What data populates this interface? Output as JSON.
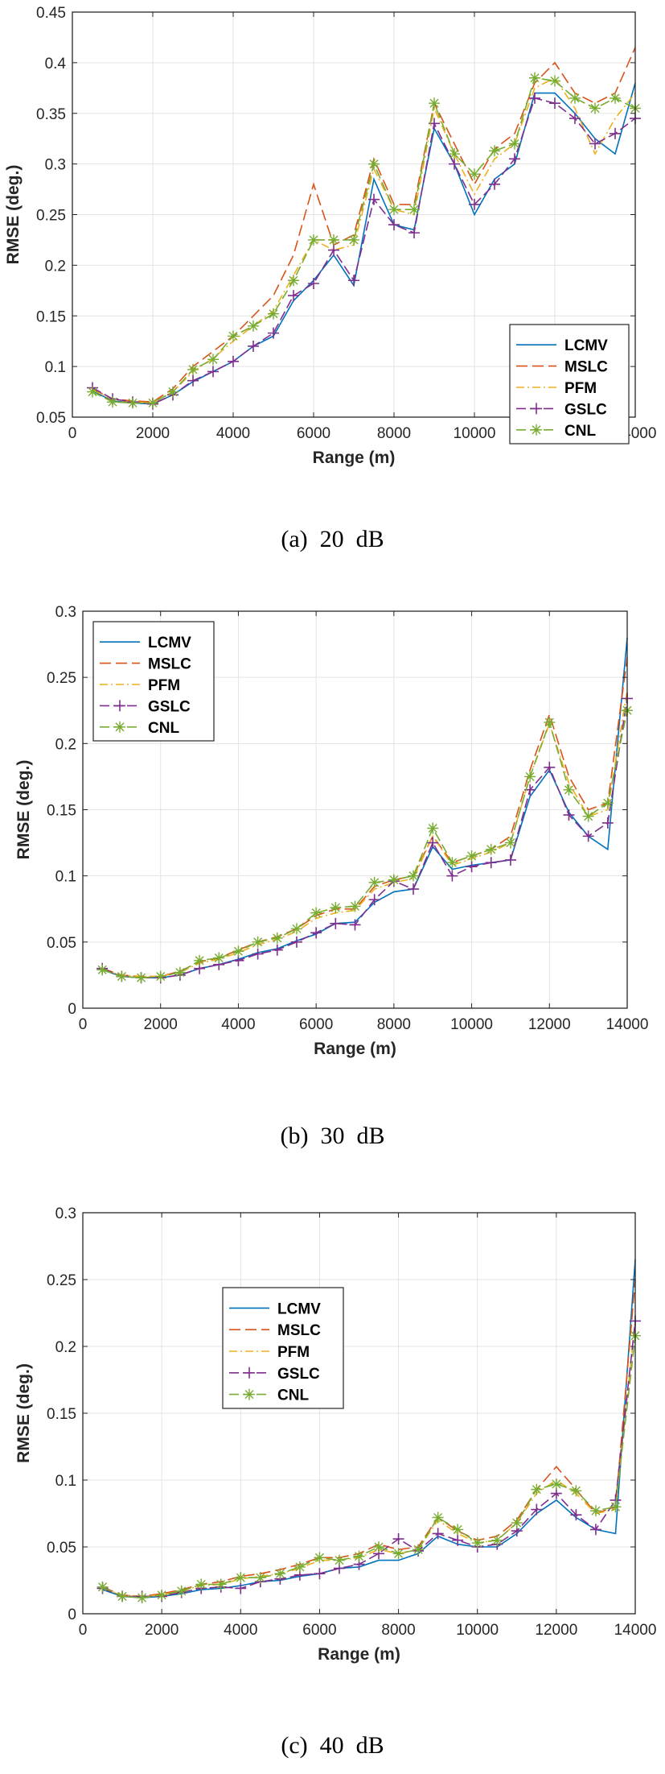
{
  "chart_data": [
    {
      "type": "line",
      "caption": "(a)  20  dB",
      "xlabel": "Range (m)",
      "ylabel": "RMSE (deg.)",
      "xlim": [
        0,
        14000
      ],
      "ylim": [
        0.05,
        0.45
      ],
      "xticks": [
        0,
        2000,
        4000,
        6000,
        8000,
        10000,
        12000,
        14000
      ],
      "yticks": [
        0.05,
        0.1,
        0.15,
        0.2,
        0.25,
        0.3,
        0.35,
        0.4,
        0.45
      ],
      "ytick_labels": [
        "0.05",
        "0.1",
        "0.15",
        "0.2",
        "0.25",
        "0.3",
        "0.35",
        "0.4",
        "0.45"
      ],
      "grid": true,
      "legend_position": "bottom-right",
      "x": [
        500,
        1000,
        1500,
        2000,
        2500,
        3000,
        3500,
        4000,
        4500,
        5000,
        5500,
        6000,
        6500,
        7000,
        7500,
        8000,
        8500,
        9000,
        9500,
        10000,
        10500,
        11000,
        11500,
        12000,
        12500,
        13000,
        13500,
        14000
      ],
      "series": [
        {
          "name": "LCMV",
          "values": [
            0.076,
            0.066,
            0.064,
            0.063,
            0.072,
            0.085,
            0.095,
            0.105,
            0.12,
            0.13,
            0.165,
            0.185,
            0.21,
            0.18,
            0.285,
            0.24,
            0.235,
            0.335,
            0.3,
            0.25,
            0.285,
            0.3,
            0.37,
            0.37,
            0.35,
            0.325,
            0.31,
            0.38
          ]
        },
        {
          "name": "MSLC",
          "values": [
            0.078,
            0.068,
            0.066,
            0.065,
            0.078,
            0.1,
            0.115,
            0.13,
            0.15,
            0.17,
            0.21,
            0.28,
            0.22,
            0.23,
            0.305,
            0.26,
            0.26,
            0.36,
            0.32,
            0.28,
            0.315,
            0.33,
            0.38,
            0.4,
            0.37,
            0.36,
            0.37,
            0.415
          ]
        },
        {
          "name": "PFM",
          "values": [
            0.077,
            0.067,
            0.065,
            0.064,
            0.075,
            0.095,
            0.108,
            0.125,
            0.14,
            0.155,
            0.19,
            0.225,
            0.215,
            0.22,
            0.295,
            0.255,
            0.25,
            0.355,
            0.31,
            0.27,
            0.305,
            0.32,
            0.375,
            0.385,
            0.355,
            0.31,
            0.345,
            0.37
          ]
        },
        {
          "name": "GSLC",
          "values": [
            0.079,
            0.068,
            0.065,
            0.063,
            0.072,
            0.086,
            0.095,
            0.105,
            0.12,
            0.133,
            0.17,
            0.182,
            0.215,
            0.185,
            0.265,
            0.24,
            0.232,
            0.34,
            0.3,
            0.26,
            0.28,
            0.305,
            0.365,
            0.36,
            0.345,
            0.32,
            0.33,
            0.345
          ]
        },
        {
          "name": "CNL",
          "values": [
            0.075,
            0.065,
            0.064,
            0.064,
            0.075,
            0.097,
            0.107,
            0.13,
            0.14,
            0.152,
            0.185,
            0.225,
            0.225,
            0.225,
            0.3,
            0.255,
            0.255,
            0.36,
            0.31,
            0.29,
            0.313,
            0.32,
            0.385,
            0.382,
            0.365,
            0.355,
            0.365,
            0.355
          ]
        }
      ]
    },
    {
      "type": "line",
      "caption": "(b)  30  dB",
      "xlabel": "Range (m)",
      "ylabel": "RMSE (deg.)",
      "xlim": [
        0,
        14000
      ],
      "ylim": [
        0,
        0.3
      ],
      "xticks": [
        0,
        2000,
        4000,
        6000,
        8000,
        10000,
        12000,
        14000
      ],
      "yticks": [
        0,
        0.05,
        0.1,
        0.15,
        0.2,
        0.25,
        0.3
      ],
      "ytick_labels": [
        "0",
        "0.05",
        "0.1",
        "0.15",
        "0.2",
        "0.25",
        "0.3"
      ],
      "grid": true,
      "legend_position": "top-left",
      "x": [
        500,
        1000,
        1500,
        2000,
        2500,
        3000,
        3500,
        4000,
        4500,
        5000,
        5500,
        6000,
        6500,
        7000,
        7500,
        8000,
        8500,
        9000,
        9500,
        10000,
        10500,
        11000,
        11500,
        12000,
        12500,
        13000,
        13500,
        14000
      ],
      "series": [
        {
          "name": "LCMV",
          "values": [
            0.029,
            0.024,
            0.023,
            0.023,
            0.025,
            0.03,
            0.033,
            0.037,
            0.042,
            0.045,
            0.051,
            0.056,
            0.064,
            0.065,
            0.08,
            0.088,
            0.09,
            0.122,
            0.105,
            0.108,
            0.11,
            0.112,
            0.16,
            0.18,
            0.148,
            0.13,
            0.12,
            0.28
          ]
        },
        {
          "name": "MSLC",
          "values": [
            0.03,
            0.025,
            0.024,
            0.024,
            0.028,
            0.035,
            0.038,
            0.044,
            0.05,
            0.054,
            0.06,
            0.07,
            0.075,
            0.075,
            0.092,
            0.097,
            0.1,
            0.13,
            0.11,
            0.115,
            0.12,
            0.13,
            0.18,
            0.222,
            0.175,
            0.15,
            0.155,
            0.265
          ]
        },
        {
          "name": "PFM",
          "values": [
            0.029,
            0.025,
            0.024,
            0.024,
            0.027,
            0.034,
            0.037,
            0.042,
            0.048,
            0.052,
            0.058,
            0.068,
            0.072,
            0.074,
            0.09,
            0.095,
            0.098,
            0.13,
            0.108,
            0.113,
            0.118,
            0.125,
            0.175,
            0.215,
            0.17,
            0.145,
            0.15,
            0.24
          ]
        },
        {
          "name": "GSLC",
          "values": [
            0.03,
            0.024,
            0.023,
            0.023,
            0.025,
            0.03,
            0.033,
            0.036,
            0.041,
            0.044,
            0.05,
            0.057,
            0.064,
            0.063,
            0.082,
            0.096,
            0.09,
            0.125,
            0.1,
            0.107,
            0.11,
            0.112,
            0.165,
            0.182,
            0.146,
            0.13,
            0.14,
            0.234
          ]
        },
        {
          "name": "CNL",
          "values": [
            0.029,
            0.024,
            0.023,
            0.024,
            0.027,
            0.036,
            0.038,
            0.043,
            0.05,
            0.053,
            0.06,
            0.072,
            0.076,
            0.077,
            0.095,
            0.097,
            0.1,
            0.136,
            0.11,
            0.115,
            0.12,
            0.125,
            0.175,
            0.216,
            0.165,
            0.145,
            0.155,
            0.225
          ]
        }
      ]
    },
    {
      "type": "line",
      "caption": "(c)  40  dB",
      "xlabel": "Range (m)",
      "ylabel": "RMSE (deg.)",
      "xlim": [
        0,
        14000
      ],
      "ylim": [
        0,
        0.3
      ],
      "xticks": [
        0,
        2000,
        4000,
        6000,
        8000,
        10000,
        12000,
        14000
      ],
      "yticks": [
        0,
        0.05,
        0.1,
        0.15,
        0.2,
        0.25,
        0.3
      ],
      "ytick_labels": [
        "0",
        "0.05",
        "0.1",
        "0.15",
        "0.2",
        "0.25",
        "0.3"
      ],
      "grid": true,
      "legend_position": "top-center",
      "x": [
        500,
        1000,
        1500,
        2000,
        2500,
        3000,
        3500,
        4000,
        4500,
        5000,
        5500,
        6000,
        6500,
        7000,
        7500,
        8000,
        8500,
        9000,
        9500,
        10000,
        10500,
        11000,
        11500,
        12000,
        12500,
        13000,
        13500,
        14000
      ],
      "series": [
        {
          "name": "LCMV",
          "values": [
            0.018,
            0.013,
            0.012,
            0.013,
            0.015,
            0.018,
            0.019,
            0.021,
            0.024,
            0.025,
            0.028,
            0.03,
            0.034,
            0.035,
            0.04,
            0.04,
            0.045,
            0.058,
            0.052,
            0.05,
            0.05,
            0.06,
            0.075,
            0.085,
            0.072,
            0.063,
            0.06,
            0.265
          ]
        },
        {
          "name": "MSLC",
          "values": [
            0.02,
            0.014,
            0.013,
            0.015,
            0.018,
            0.022,
            0.024,
            0.028,
            0.03,
            0.033,
            0.037,
            0.042,
            0.042,
            0.045,
            0.052,
            0.048,
            0.05,
            0.072,
            0.062,
            0.055,
            0.058,
            0.07,
            0.093,
            0.11,
            0.093,
            0.075,
            0.08,
            0.25
          ]
        },
        {
          "name": "PFM",
          "values": [
            0.019,
            0.014,
            0.013,
            0.014,
            0.017,
            0.021,
            0.022,
            0.026,
            0.028,
            0.03,
            0.034,
            0.04,
            0.04,
            0.042,
            0.048,
            0.045,
            0.048,
            0.07,
            0.06,
            0.053,
            0.055,
            0.068,
            0.09,
            0.1,
            0.09,
            0.075,
            0.078,
            0.22
          ]
        },
        {
          "name": "GSLC",
          "values": [
            0.019,
            0.013,
            0.013,
            0.013,
            0.016,
            0.019,
            0.02,
            0.019,
            0.024,
            0.026,
            0.029,
            0.03,
            0.034,
            0.037,
            0.045,
            0.056,
            0.047,
            0.06,
            0.055,
            0.05,
            0.052,
            0.062,
            0.078,
            0.09,
            0.074,
            0.063,
            0.085,
            0.219
          ]
        },
        {
          "name": "CNL",
          "values": [
            0.02,
            0.013,
            0.012,
            0.014,
            0.017,
            0.022,
            0.022,
            0.027,
            0.027,
            0.03,
            0.035,
            0.042,
            0.04,
            0.043,
            0.05,
            0.045,
            0.048,
            0.072,
            0.063,
            0.053,
            0.055,
            0.068,
            0.093,
            0.097,
            0.092,
            0.077,
            0.08,
            0.208
          ]
        }
      ]
    }
  ],
  "styles": {
    "colors": [
      "#0072BD",
      "#D95319",
      "#EDB120",
      "#7E2F8E",
      "#77AC30"
    ],
    "dashes": [
      "",
      "14 6",
      "10 4 2 4",
      "12 5",
      "12 5"
    ],
    "markers": [
      "none",
      "none",
      "none",
      "plus",
      "star"
    ]
  }
}
